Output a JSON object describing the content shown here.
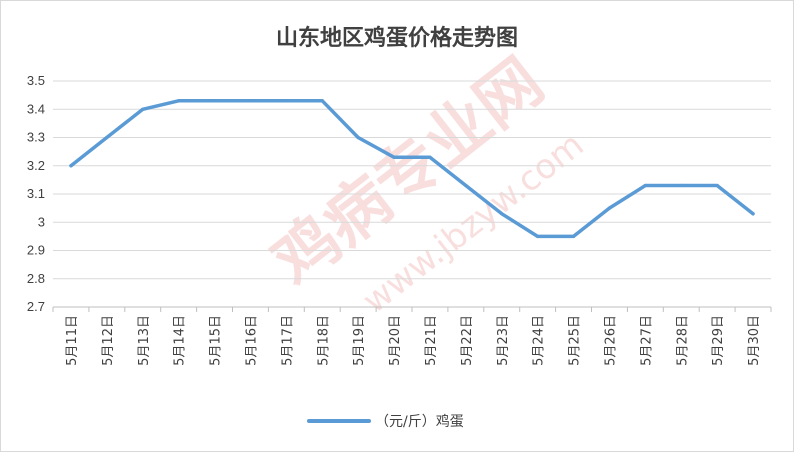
{
  "chart_data": {
    "type": "line",
    "title": "山东地区鸡蛋价格走势图",
    "categories": [
      "5月11日",
      "5月12日",
      "5月13日",
      "5月14日",
      "5月15日",
      "5月16日",
      "5月17日",
      "5月18日",
      "5月19日",
      "5月20日",
      "5月21日",
      "5月22日",
      "5月23日",
      "5月24日",
      "5月25日",
      "5月26日",
      "5月27日",
      "5月28日",
      "5月29日",
      "5月30日"
    ],
    "series": [
      {
        "name": "（元/斤）鸡蛋",
        "color": "#5b9bd5",
        "values": [
          3.2,
          3.3,
          3.4,
          3.43,
          3.43,
          3.43,
          3.43,
          3.43,
          3.3,
          3.23,
          3.23,
          3.13,
          3.03,
          2.95,
          2.95,
          3.05,
          3.13,
          3.13,
          3.13,
          3.03
        ]
      }
    ],
    "ylim": [
      2.7,
      3.5
    ],
    "yticks": [
      "2.7",
      "2.8",
      "2.9",
      "3",
      "3.1",
      "3.2",
      "3.3",
      "3.4",
      "3.5"
    ],
    "grid": true,
    "legend_position": "bottom"
  },
  "watermark": {
    "main": "鸡病专业网",
    "url": "www.jbzyw.com"
  }
}
